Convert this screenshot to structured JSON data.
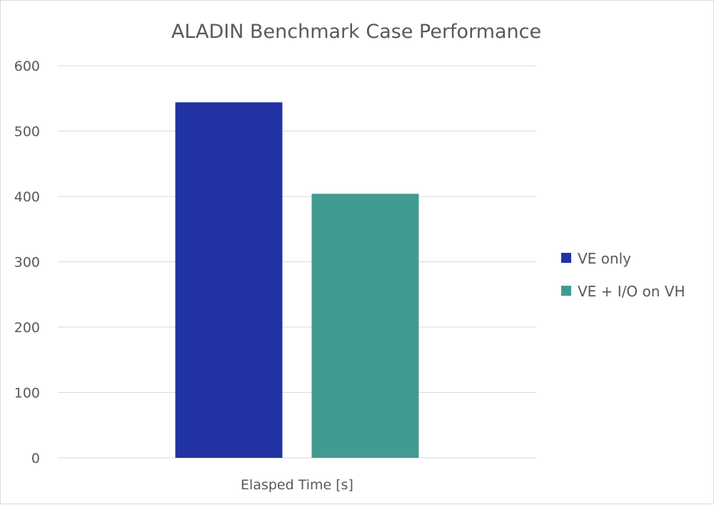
{
  "chart_data": {
    "type": "bar",
    "title": "ALADIN Benchmark Case Performance",
    "xlabel": "",
    "ylabel": "",
    "categories": [
      "Elasped Time [s]"
    ],
    "series": [
      {
        "name": "VE only",
        "values": [
          544
        ],
        "color": "#2133a3"
      },
      {
        "name": "VE + I/O on VH",
        "values": [
          404
        ],
        "color": "#429b91"
      }
    ],
    "ylim": [
      0,
      600
    ],
    "yticks": [
      0,
      100,
      200,
      300,
      400,
      500,
      600
    ],
    "grid": true,
    "legend_position": "right"
  }
}
